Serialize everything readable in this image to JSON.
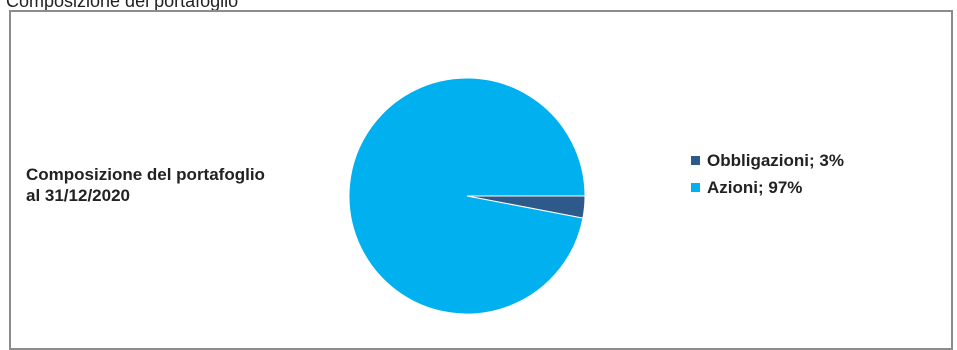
{
  "caption": "Composizione del portafoglio",
  "chart_data": {
    "type": "pie",
    "title_lines": [
      "Composizione del portafoglio",
      "al 31/12/2020"
    ],
    "slices": [
      {
        "name": "Obbligazioni",
        "value": 3,
        "label": "Obbligazioni; 3%",
        "color": "#2e5a8b"
      },
      {
        "name": "Azioni",
        "value": 97,
        "label": "Azioni; 97%",
        "color": "#00b0ef"
      }
    ],
    "legend_position": "right"
  }
}
